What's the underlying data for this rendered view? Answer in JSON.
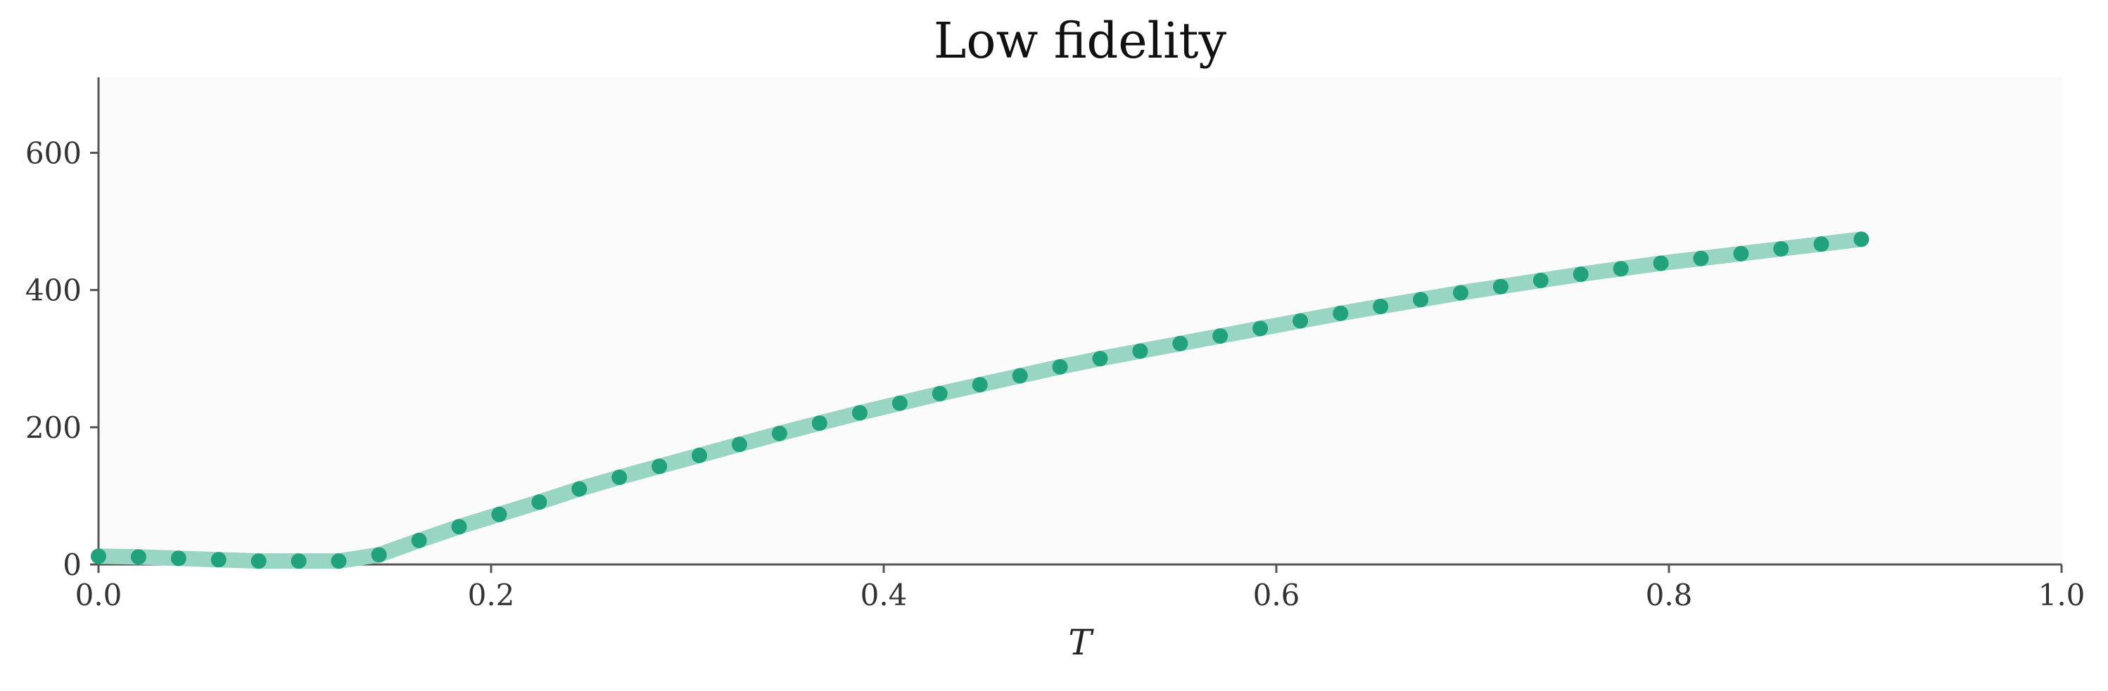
{
  "chart_data": {
    "type": "line",
    "title": "Low fidelity",
    "xlabel": "T",
    "ylabel": "",
    "xlim": [
      0.0,
      1.0
    ],
    "ylim": [
      0,
      710
    ],
    "xticks": [
      "0.0",
      "0.2",
      "0.4",
      "0.6",
      "0.8",
      "1.0"
    ],
    "yticks": [
      "0",
      "200",
      "400",
      "600"
    ],
    "grid": false,
    "colors": {
      "line": "#98d5c3",
      "marker": "#21a27d",
      "plot_bg": "#fbfbfb",
      "axis": "#555555"
    },
    "series": [
      {
        "name": "Low fidelity",
        "x": [
          0.0,
          0.0204,
          0.0408,
          0.0612,
          0.0816,
          0.102,
          0.1224,
          0.1429,
          0.1633,
          0.1837,
          0.2041,
          0.2245,
          0.2449,
          0.2653,
          0.2857,
          0.3061,
          0.3265,
          0.3469,
          0.3673,
          0.3878,
          0.4082,
          0.4286,
          0.449,
          0.4694,
          0.4898,
          0.5102,
          0.5306,
          0.551,
          0.5714,
          0.5918,
          0.6122,
          0.6327,
          0.6531,
          0.6735,
          0.6939,
          0.7143,
          0.7347,
          0.7551,
          0.7755,
          0.7959,
          0.8163,
          0.8367,
          0.8571,
          0.8776,
          0.898
        ],
        "y": [
          12,
          11,
          9,
          7,
          5,
          5,
          5,
          14,
          35,
          55,
          73,
          91,
          110,
          127,
          143,
          159,
          175,
          191,
          206,
          221,
          235,
          249,
          262,
          275,
          288,
          300,
          311,
          322,
          333,
          344,
          355,
          366,
          376,
          386,
          396,
          405,
          414,
          423,
          431,
          439,
          446,
          453,
          460,
          467,
          474
        ]
      }
    ]
  }
}
